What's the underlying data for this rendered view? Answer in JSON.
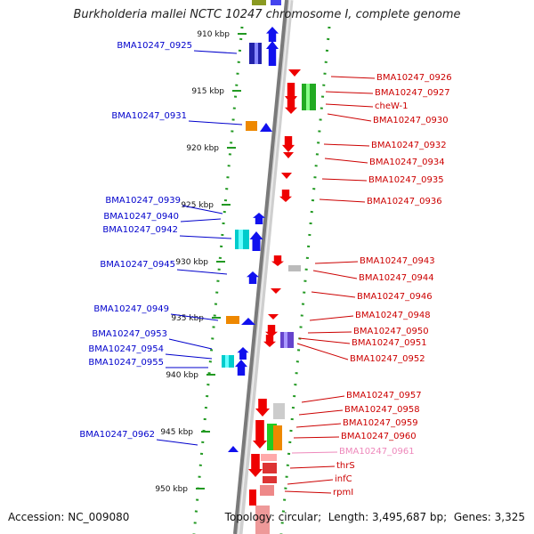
{
  "title": "Burkholderia mallei NCTC 10247 chromosome I, complete genome",
  "footer": {
    "accession_label": "Accession:",
    "accession": "NC_009080",
    "topology_label": "Topology:",
    "topology": "circular",
    "length_label": "Length:",
    "length": "3,495,687 bp",
    "genes_label": "Genes:",
    "genes": "3,325"
  },
  "colors": {
    "left_labels": "#0000cc",
    "right_labels": "#cc0000",
    "pink_label": "#ee88bb",
    "axis_green": "#229922",
    "axis_gray": "#888888"
  },
  "scale_labels": [
    "910 kbp",
    "915 kbp",
    "920 kbp",
    "925 kbp",
    "930 kbp",
    "935 kbp",
    "940 kbp",
    "945 kbp",
    "950 kbp"
  ],
  "left_genes": [
    "BMA10247_0925",
    "BMA10247_0931",
    "BMA10247_0939",
    "BMA10247_0940",
    "BMA10247_0942",
    "BMA10247_0945",
    "BMA10247_0949",
    "BMA10247_0953",
    "BMA10247_0954",
    "BMA10247_0955",
    "BMA10247_0962"
  ],
  "right_genes": [
    "BMA10247_0926",
    "BMA10247_0927",
    "cheW-1",
    "BMA10247_0930",
    "BMA10247_0932",
    "BMA10247_0934",
    "BMA10247_0935",
    "BMA10247_0936",
    "BMA10247_0943",
    "BMA10247_0944",
    "BMA10247_0946",
    "BMA10247_0948",
    "BMA10247_0950",
    "BMA10247_0951",
    "BMA10247_0952",
    "BMA10247_0957",
    "BMA10247_0958",
    "BMA10247_0959",
    "BMA10247_0960",
    "BMA10247_0961",
    "thrS",
    "infC",
    "rpmI"
  ]
}
